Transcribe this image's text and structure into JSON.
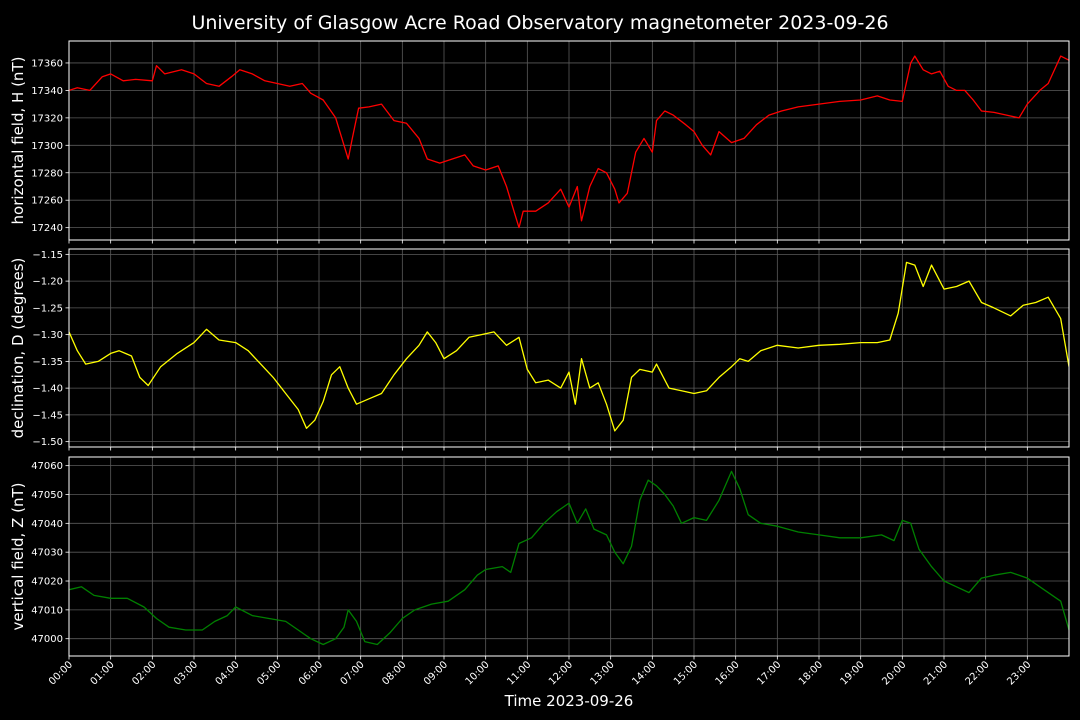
{
  "chart_data": {
    "title": "University of Glasgow Acre Road Observatory magnetometer 2023-09-26",
    "xlabel": "Time 2023-09-26",
    "type": "line",
    "x_range_hours": [
      0,
      24
    ],
    "x_tick_labels": [
      "00:00",
      "01:00",
      "02:00",
      "03:00",
      "04:00",
      "05:00",
      "06:00",
      "07:00",
      "08:00",
      "09:00",
      "10:00",
      "11:00",
      "12:00",
      "13:00",
      "14:00",
      "15:00",
      "16:00",
      "17:00",
      "18:00",
      "19:00",
      "20:00",
      "21:00",
      "22:00",
      "23:00"
    ],
    "grid": true,
    "background": "#000000",
    "panels": [
      {
        "name": "H",
        "ylabel": "horizontal field, H (nT)",
        "color": "#ff0000",
        "ylim": [
          17231,
          17376
        ],
        "yticks": [
          17240,
          17260,
          17280,
          17300,
          17320,
          17340,
          17360
        ],
        "ytick_labels": [
          "17240",
          "17260",
          "17280",
          "17300",
          "17320",
          "17340",
          "17360"
        ],
        "points": [
          [
            0.0,
            17340
          ],
          [
            0.2,
            17342
          ],
          [
            0.5,
            17340
          ],
          [
            0.8,
            17350
          ],
          [
            1.0,
            17352
          ],
          [
            1.3,
            17347
          ],
          [
            1.6,
            17348
          ],
          [
            2.0,
            17347
          ],
          [
            2.1,
            17358
          ],
          [
            2.3,
            17352
          ],
          [
            2.7,
            17355
          ],
          [
            3.0,
            17352
          ],
          [
            3.3,
            17345
          ],
          [
            3.6,
            17343
          ],
          [
            3.9,
            17350
          ],
          [
            4.1,
            17355
          ],
          [
            4.4,
            17352
          ],
          [
            4.7,
            17347
          ],
          [
            5.0,
            17345
          ],
          [
            5.3,
            17343
          ],
          [
            5.6,
            17345
          ],
          [
            5.8,
            17338
          ],
          [
            6.1,
            17333
          ],
          [
            6.4,
            17320
          ],
          [
            6.5,
            17310
          ],
          [
            6.7,
            17290
          ],
          [
            6.8,
            17305
          ],
          [
            6.95,
            17327
          ],
          [
            7.2,
            17328
          ],
          [
            7.5,
            17330
          ],
          [
            7.8,
            17318
          ],
          [
            8.1,
            17316
          ],
          [
            8.4,
            17305
          ],
          [
            8.6,
            17290
          ],
          [
            8.9,
            17287
          ],
          [
            9.2,
            17290
          ],
          [
            9.5,
            17293
          ],
          [
            9.7,
            17285
          ],
          [
            10.0,
            17282
          ],
          [
            10.3,
            17285
          ],
          [
            10.5,
            17270
          ],
          [
            10.7,
            17250
          ],
          [
            10.8,
            17240
          ],
          [
            10.9,
            17252
          ],
          [
            11.2,
            17252
          ],
          [
            11.5,
            17258
          ],
          [
            11.8,
            17268
          ],
          [
            12.0,
            17255
          ],
          [
            12.2,
            17270
          ],
          [
            12.3,
            17245
          ],
          [
            12.5,
            17270
          ],
          [
            12.7,
            17283
          ],
          [
            12.9,
            17280
          ],
          [
            13.1,
            17268
          ],
          [
            13.2,
            17258
          ],
          [
            13.4,
            17265
          ],
          [
            13.6,
            17295
          ],
          [
            13.8,
            17305
          ],
          [
            14.0,
            17295
          ],
          [
            14.1,
            17318
          ],
          [
            14.3,
            17325
          ],
          [
            14.5,
            17322
          ],
          [
            14.8,
            17315
          ],
          [
            15.0,
            17310
          ],
          [
            15.2,
            17300
          ],
          [
            15.4,
            17293
          ],
          [
            15.6,
            17310
          ],
          [
            15.9,
            17302
          ],
          [
            16.2,
            17305
          ],
          [
            16.5,
            17315
          ],
          [
            16.8,
            17322
          ],
          [
            17.1,
            17325
          ],
          [
            17.5,
            17328
          ],
          [
            18.0,
            17330
          ],
          [
            18.5,
            17332
          ],
          [
            19.0,
            17333
          ],
          [
            19.4,
            17336
          ],
          [
            19.7,
            17333
          ],
          [
            20.0,
            17332
          ],
          [
            20.2,
            17360
          ],
          [
            20.3,
            17365
          ],
          [
            20.5,
            17355
          ],
          [
            20.7,
            17352
          ],
          [
            20.9,
            17354
          ],
          [
            21.1,
            17343
          ],
          [
            21.3,
            17340
          ],
          [
            21.5,
            17340
          ],
          [
            21.7,
            17333
          ],
          [
            21.9,
            17325
          ],
          [
            22.2,
            17324
          ],
          [
            22.5,
            17322
          ],
          [
            22.8,
            17320
          ],
          [
            23.0,
            17330
          ],
          [
            23.3,
            17340
          ],
          [
            23.5,
            17345
          ],
          [
            23.8,
            17365
          ],
          [
            24.0,
            17362
          ]
        ]
      },
      {
        "name": "D",
        "ylabel": "declination, D (degrees)",
        "color": "#ffff00",
        "ylim": [
          -1.51,
          -1.14
        ],
        "yticks": [
          -1.5,
          -1.45,
          -1.4,
          -1.35,
          -1.3,
          -1.25,
          -1.2,
          -1.15
        ],
        "ytick_labels": [
          "−1.50",
          "−1.45",
          "−1.40",
          "−1.35",
          "−1.30",
          "−1.25",
          "−1.20",
          "−1.15"
        ],
        "points": [
          [
            0.0,
            -1.295
          ],
          [
            0.2,
            -1.33
          ],
          [
            0.4,
            -1.355
          ],
          [
            0.7,
            -1.35
          ],
          [
            1.0,
            -1.335
          ],
          [
            1.2,
            -1.33
          ],
          [
            1.5,
            -1.34
          ],
          [
            1.7,
            -1.38
          ],
          [
            1.9,
            -1.395
          ],
          [
            2.2,
            -1.36
          ],
          [
            2.6,
            -1.335
          ],
          [
            3.0,
            -1.315
          ],
          [
            3.3,
            -1.29
          ],
          [
            3.6,
            -1.31
          ],
          [
            4.0,
            -1.315
          ],
          [
            4.3,
            -1.33
          ],
          [
            4.6,
            -1.355
          ],
          [
            4.9,
            -1.38
          ],
          [
            5.2,
            -1.41
          ],
          [
            5.5,
            -1.44
          ],
          [
            5.7,
            -1.475
          ],
          [
            5.9,
            -1.46
          ],
          [
            6.1,
            -1.425
          ],
          [
            6.3,
            -1.375
          ],
          [
            6.5,
            -1.36
          ],
          [
            6.7,
            -1.4
          ],
          [
            6.9,
            -1.43
          ],
          [
            7.2,
            -1.42
          ],
          [
            7.5,
            -1.41
          ],
          [
            7.8,
            -1.375
          ],
          [
            8.1,
            -1.345
          ],
          [
            8.4,
            -1.32
          ],
          [
            8.6,
            -1.295
          ],
          [
            8.8,
            -1.315
          ],
          [
            9.0,
            -1.345
          ],
          [
            9.3,
            -1.33
          ],
          [
            9.6,
            -1.305
          ],
          [
            9.9,
            -1.3
          ],
          [
            10.2,
            -1.295
          ],
          [
            10.5,
            -1.32
          ],
          [
            10.8,
            -1.305
          ],
          [
            11.0,
            -1.365
          ],
          [
            11.2,
            -1.39
          ],
          [
            11.5,
            -1.385
          ],
          [
            11.8,
            -1.4
          ],
          [
            12.0,
            -1.37
          ],
          [
            12.15,
            -1.43
          ],
          [
            12.3,
            -1.345
          ],
          [
            12.5,
            -1.4
          ],
          [
            12.7,
            -1.39
          ],
          [
            12.9,
            -1.43
          ],
          [
            13.1,
            -1.48
          ],
          [
            13.3,
            -1.46
          ],
          [
            13.5,
            -1.38
          ],
          [
            13.7,
            -1.365
          ],
          [
            14.0,
            -1.37
          ],
          [
            14.1,
            -1.355
          ],
          [
            14.4,
            -1.4
          ],
          [
            14.7,
            -1.405
          ],
          [
            15.0,
            -1.41
          ],
          [
            15.3,
            -1.405
          ],
          [
            15.6,
            -1.38
          ],
          [
            15.9,
            -1.36
          ],
          [
            16.1,
            -1.345
          ],
          [
            16.3,
            -1.35
          ],
          [
            16.6,
            -1.33
          ],
          [
            17.0,
            -1.32
          ],
          [
            17.5,
            -1.325
          ],
          [
            18.0,
            -1.32
          ],
          [
            18.5,
            -1.318
          ],
          [
            19.0,
            -1.315
          ],
          [
            19.4,
            -1.315
          ],
          [
            19.7,
            -1.31
          ],
          [
            19.9,
            -1.26
          ],
          [
            20.1,
            -1.165
          ],
          [
            20.3,
            -1.17
          ],
          [
            20.5,
            -1.21
          ],
          [
            20.7,
            -1.17
          ],
          [
            21.0,
            -1.215
          ],
          [
            21.3,
            -1.21
          ],
          [
            21.6,
            -1.2
          ],
          [
            21.9,
            -1.24
          ],
          [
            22.2,
            -1.25
          ],
          [
            22.6,
            -1.265
          ],
          [
            22.9,
            -1.245
          ],
          [
            23.2,
            -1.24
          ],
          [
            23.5,
            -1.23
          ],
          [
            23.8,
            -1.27
          ],
          [
            24.0,
            -1.36
          ]
        ]
      },
      {
        "name": "Z",
        "ylabel": "vertical field, Z (nT)",
        "color": "#008000",
        "ylim": [
          46994,
          47063
        ],
        "yticks": [
          47000,
          47010,
          47020,
          47030,
          47040,
          47050,
          47060
        ],
        "ytick_labels": [
          "47000",
          "47010",
          "47020",
          "47030",
          "47040",
          "47050",
          "47060"
        ],
        "points": [
          [
            0.0,
            47017
          ],
          [
            0.3,
            47018
          ],
          [
            0.6,
            47015
          ],
          [
            1.0,
            47014
          ],
          [
            1.4,
            47014
          ],
          [
            1.8,
            47011
          ],
          [
            2.1,
            47007
          ],
          [
            2.4,
            47004
          ],
          [
            2.8,
            47003
          ],
          [
            3.2,
            47003
          ],
          [
            3.5,
            47006
          ],
          [
            3.8,
            47008
          ],
          [
            4.0,
            47011
          ],
          [
            4.4,
            47008
          ],
          [
            4.8,
            47007
          ],
          [
            5.2,
            47006
          ],
          [
            5.5,
            47003
          ],
          [
            5.8,
            47000
          ],
          [
            6.1,
            46998
          ],
          [
            6.4,
            47000
          ],
          [
            6.6,
            47004
          ],
          [
            6.7,
            47010
          ],
          [
            6.9,
            47006
          ],
          [
            7.1,
            46999
          ],
          [
            7.4,
            46998
          ],
          [
            7.7,
            47002
          ],
          [
            8.0,
            47007
          ],
          [
            8.3,
            47010
          ],
          [
            8.7,
            47012
          ],
          [
            9.1,
            47013
          ],
          [
            9.5,
            47017
          ],
          [
            9.8,
            47022
          ],
          [
            10.0,
            47024
          ],
          [
            10.4,
            47025
          ],
          [
            10.6,
            47023
          ],
          [
            10.8,
            47033
          ],
          [
            11.1,
            47035
          ],
          [
            11.4,
            47040
          ],
          [
            11.7,
            47044
          ],
          [
            12.0,
            47047
          ],
          [
            12.2,
            47040
          ],
          [
            12.4,
            47045
          ],
          [
            12.6,
            47038
          ],
          [
            12.9,
            47036
          ],
          [
            13.1,
            47030
          ],
          [
            13.3,
            47026
          ],
          [
            13.5,
            47032
          ],
          [
            13.7,
            47048
          ],
          [
            13.9,
            47055
          ],
          [
            14.1,
            47053
          ],
          [
            14.3,
            47050
          ],
          [
            14.5,
            47046
          ],
          [
            14.7,
            47040
          ],
          [
            15.0,
            47042
          ],
          [
            15.3,
            47041
          ],
          [
            15.6,
            47048
          ],
          [
            15.9,
            47058
          ],
          [
            16.1,
            47052
          ],
          [
            16.3,
            47043
          ],
          [
            16.6,
            47040
          ],
          [
            17.0,
            47039
          ],
          [
            17.5,
            47037
          ],
          [
            18.0,
            47036
          ],
          [
            18.5,
            47035
          ],
          [
            19.0,
            47035
          ],
          [
            19.5,
            47036
          ],
          [
            19.8,
            47034
          ],
          [
            20.0,
            47041
          ],
          [
            20.2,
            47040
          ],
          [
            20.4,
            47031
          ],
          [
            20.7,
            47025
          ],
          [
            21.0,
            47020
          ],
          [
            21.3,
            47018
          ],
          [
            21.6,
            47016
          ],
          [
            21.9,
            47021
          ],
          [
            22.2,
            47022
          ],
          [
            22.6,
            47023
          ],
          [
            23.0,
            47021
          ],
          [
            23.4,
            47017
          ],
          [
            23.8,
            47013
          ],
          [
            24.0,
            47003
          ]
        ]
      }
    ]
  }
}
